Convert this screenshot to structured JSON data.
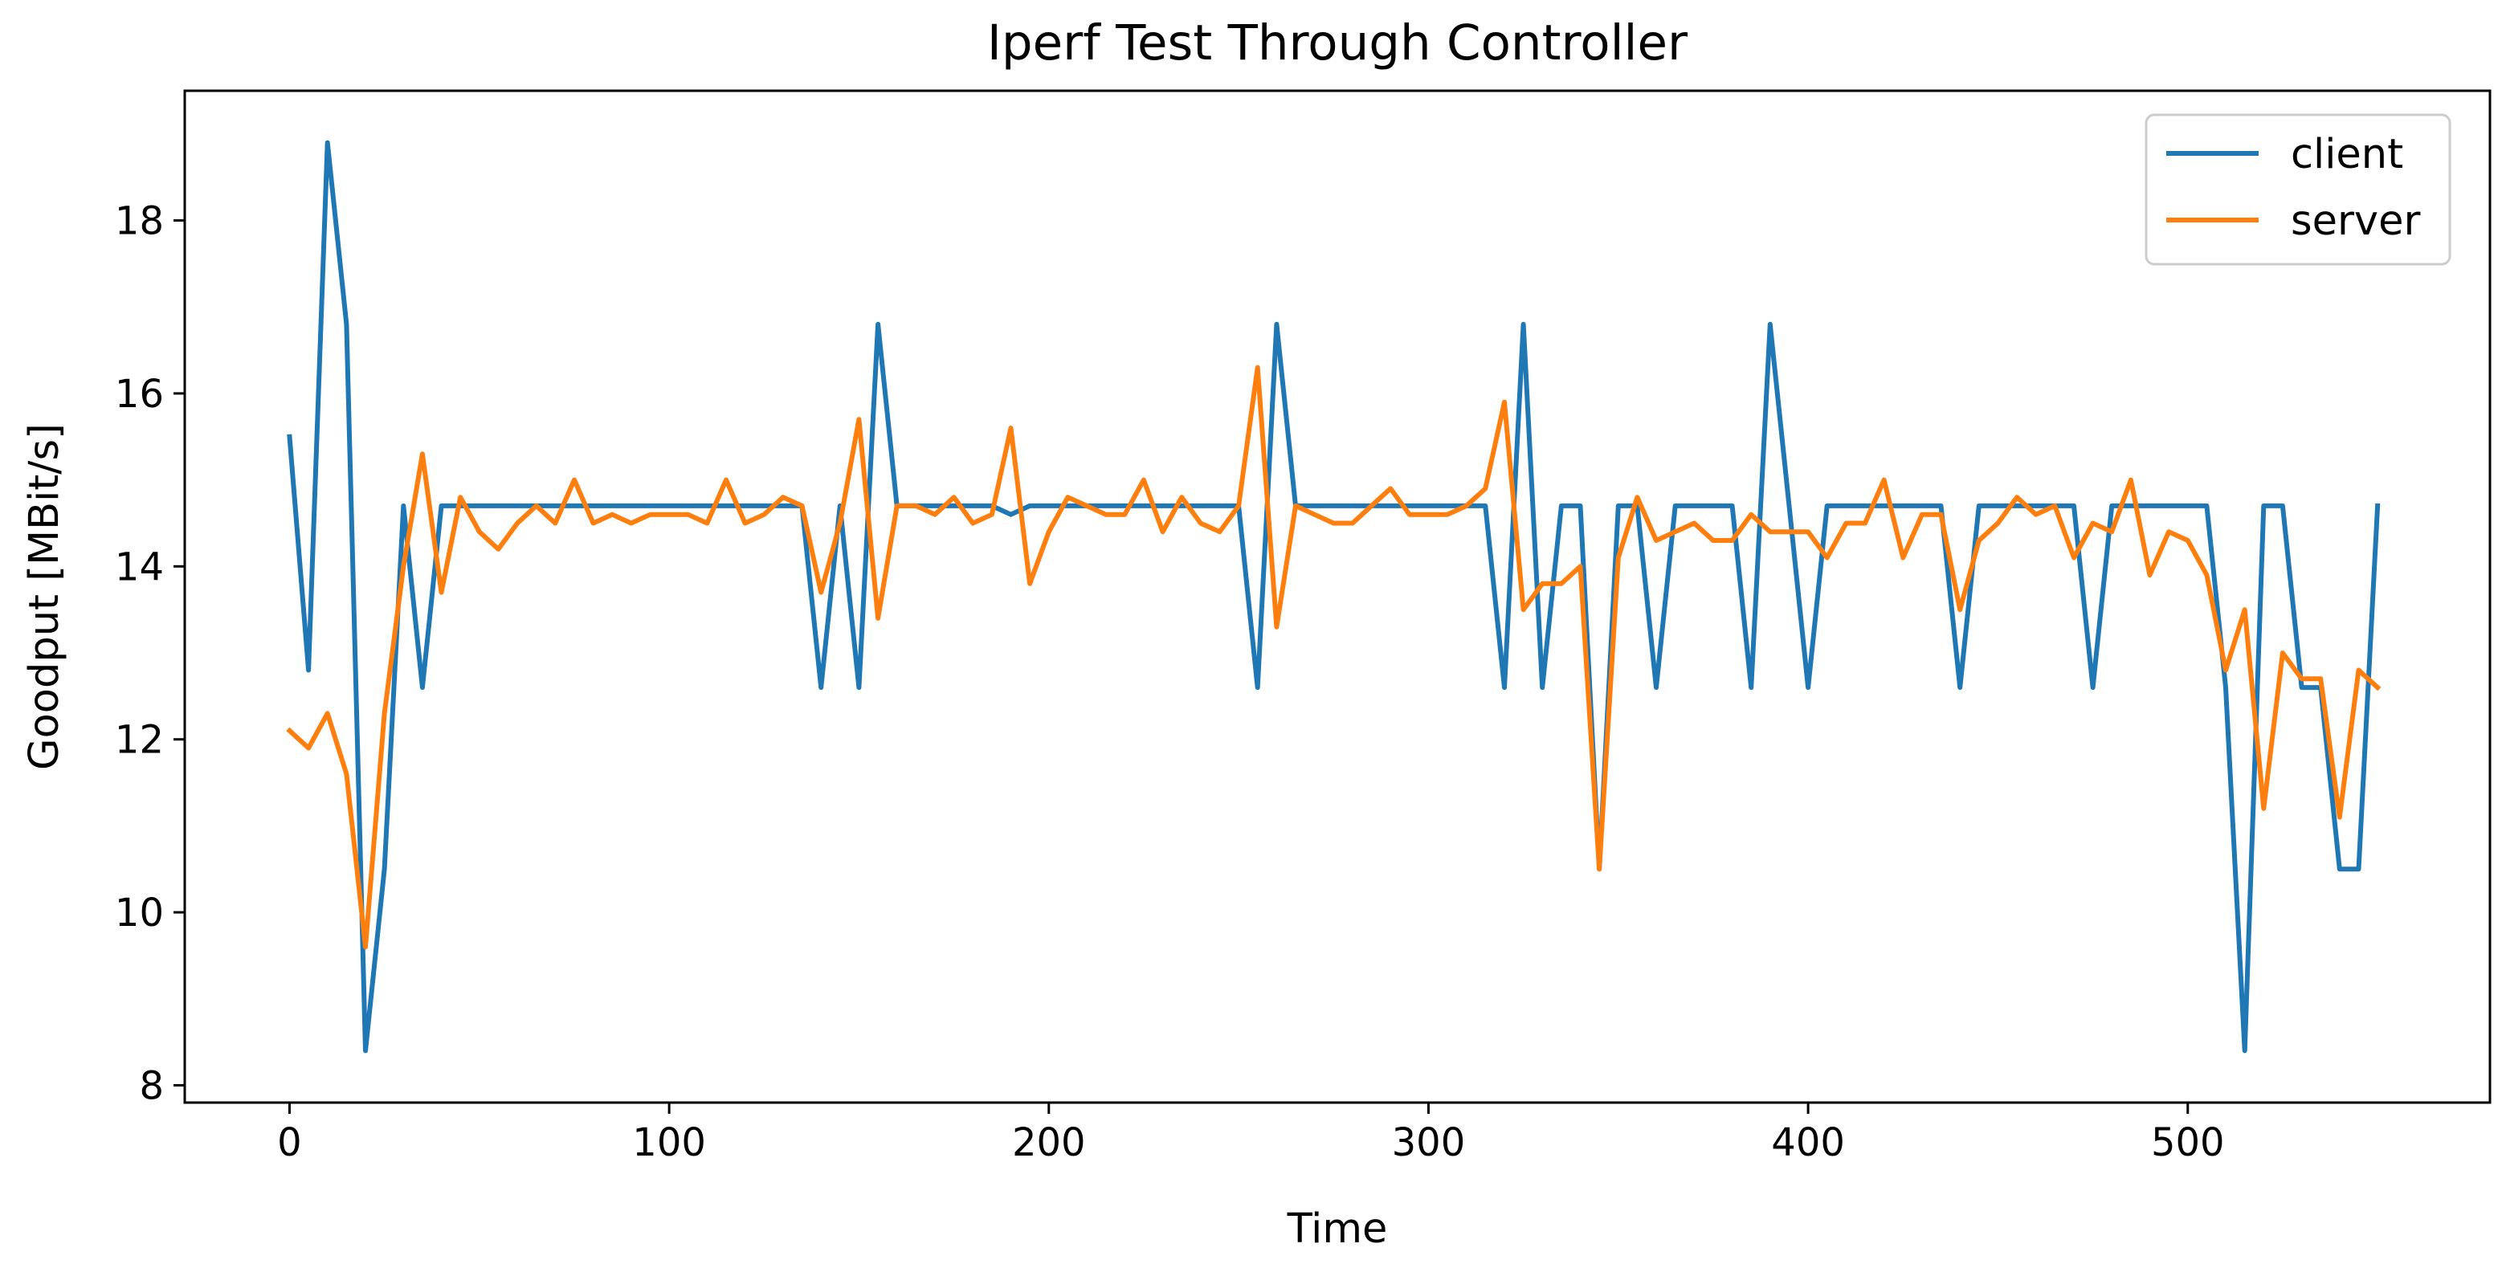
{
  "chart_data": {
    "type": "line",
    "title": "Iperf Test Through Controller",
    "xlabel": "Time",
    "ylabel": "Goodput [MBit/s]",
    "xlim": [
      -27.6,
      579.6
    ],
    "ylim": [
      7.8,
      19.5
    ],
    "x_ticks": [
      0,
      100,
      200,
      300,
      400,
      500
    ],
    "y_ticks": [
      8,
      10,
      12,
      14,
      16,
      18
    ],
    "grid": false,
    "legend_position": "top-right",
    "series": [
      {
        "name": "client",
        "color": "#1f77b4",
        "x": [
          0,
          5,
          10,
          15,
          20,
          25,
          30,
          35,
          40,
          45,
          50,
          55,
          60,
          65,
          70,
          75,
          80,
          85,
          90,
          95,
          100,
          105,
          110,
          115,
          120,
          125,
          130,
          135,
          140,
          145,
          150,
          155,
          160,
          165,
          170,
          175,
          180,
          185,
          190,
          195,
          200,
          205,
          210,
          215,
          220,
          225,
          230,
          235,
          240,
          245,
          250,
          255,
          260,
          265,
          270,
          275,
          280,
          285,
          290,
          295,
          300,
          305,
          310,
          315,
          320,
          325,
          330,
          335,
          340,
          345,
          350,
          355,
          360,
          365,
          370,
          375,
          380,
          385,
          390,
          395,
          400,
          405,
          410,
          415,
          420,
          425,
          430,
          435,
          440,
          445,
          450,
          455,
          460,
          465,
          470,
          475,
          480,
          485,
          490,
          495,
          500,
          505,
          510,
          515,
          520,
          525,
          530,
          535,
          540,
          545,
          550
        ],
        "y": [
          15.5,
          12.8,
          18.9,
          16.8,
          8.4,
          10.5,
          14.7,
          12.6,
          14.7,
          14.7,
          14.7,
          14.7,
          14.7,
          14.7,
          14.7,
          14.7,
          14.7,
          14.7,
          14.7,
          14.7,
          14.7,
          14.7,
          14.7,
          14.7,
          14.7,
          14.7,
          14.7,
          14.7,
          12.6,
          14.7,
          12.6,
          16.8,
          14.7,
          14.7,
          14.7,
          14.7,
          14.7,
          14.7,
          14.6,
          14.7,
          14.7,
          14.7,
          14.7,
          14.7,
          14.7,
          14.7,
          14.7,
          14.7,
          14.7,
          14.7,
          14.7,
          12.6,
          16.8,
          14.7,
          14.7,
          14.7,
          14.7,
          14.7,
          14.7,
          14.7,
          14.7,
          14.7,
          14.7,
          14.7,
          12.6,
          16.8,
          12.6,
          14.7,
          14.7,
          10.5,
          14.7,
          14.7,
          12.6,
          14.7,
          14.7,
          14.7,
          14.7,
          12.6,
          16.8,
          14.7,
          12.6,
          14.7,
          14.7,
          14.7,
          14.7,
          14.7,
          14.7,
          14.7,
          12.6,
          14.7,
          14.7,
          14.7,
          14.7,
          14.7,
          14.7,
          12.6,
          14.7,
          14.7,
          14.7,
          14.7,
          14.7,
          14.7,
          12.6,
          8.4,
          14.7,
          14.7,
          12.6,
          12.6,
          10.5,
          10.5,
          14.7
        ]
      },
      {
        "name": "server",
        "color": "#ff7f0e",
        "x": [
          0,
          5,
          10,
          15,
          20,
          25,
          30,
          35,
          40,
          45,
          50,
          55,
          60,
          65,
          70,
          75,
          80,
          85,
          90,
          95,
          100,
          105,
          110,
          115,
          120,
          125,
          130,
          135,
          140,
          145,
          150,
          155,
          160,
          165,
          170,
          175,
          180,
          185,
          190,
          195,
          200,
          205,
          210,
          215,
          220,
          225,
          230,
          235,
          240,
          245,
          250,
          255,
          260,
          265,
          270,
          275,
          280,
          285,
          290,
          295,
          300,
          305,
          310,
          315,
          320,
          325,
          330,
          335,
          340,
          345,
          350,
          355,
          360,
          365,
          370,
          375,
          380,
          385,
          390,
          395,
          400,
          405,
          410,
          415,
          420,
          425,
          430,
          435,
          440,
          445,
          450,
          455,
          460,
          465,
          470,
          475,
          480,
          485,
          490,
          495,
          500,
          505,
          510,
          515,
          520,
          525,
          530,
          535,
          540,
          545,
          550
        ],
        "y": [
          12.1,
          11.9,
          12.3,
          11.6,
          9.6,
          12.3,
          14.0,
          15.3,
          13.7,
          14.8,
          14.4,
          14.2,
          14.5,
          14.7,
          14.5,
          15.0,
          14.5,
          14.6,
          14.5,
          14.6,
          14.6,
          14.6,
          14.5,
          15.0,
          14.5,
          14.6,
          14.8,
          14.7,
          13.7,
          14.5,
          15.7,
          13.4,
          14.7,
          14.7,
          14.6,
          14.8,
          14.5,
          14.6,
          15.6,
          13.8,
          14.4,
          14.8,
          14.7,
          14.6,
          14.6,
          15.0,
          14.4,
          14.8,
          14.5,
          14.4,
          14.7,
          16.3,
          13.3,
          14.7,
          14.6,
          14.5,
          14.5,
          14.7,
          14.9,
          14.6,
          14.6,
          14.6,
          14.7,
          14.9,
          15.9,
          13.5,
          13.8,
          13.8,
          14.0,
          10.5,
          14.1,
          14.8,
          14.3,
          14.4,
          14.5,
          14.3,
          14.3,
          14.6,
          14.4,
          14.4,
          14.4,
          14.1,
          14.5,
          14.5,
          15.0,
          14.1,
          14.6,
          14.6,
          13.5,
          14.3,
          14.5,
          14.8,
          14.6,
          14.7,
          14.1,
          14.5,
          14.4,
          15.0,
          13.9,
          14.4,
          14.3,
          13.9,
          12.8,
          13.5,
          11.2,
          13.0,
          12.7,
          12.7,
          11.1,
          12.8,
          12.6
        ]
      }
    ]
  }
}
